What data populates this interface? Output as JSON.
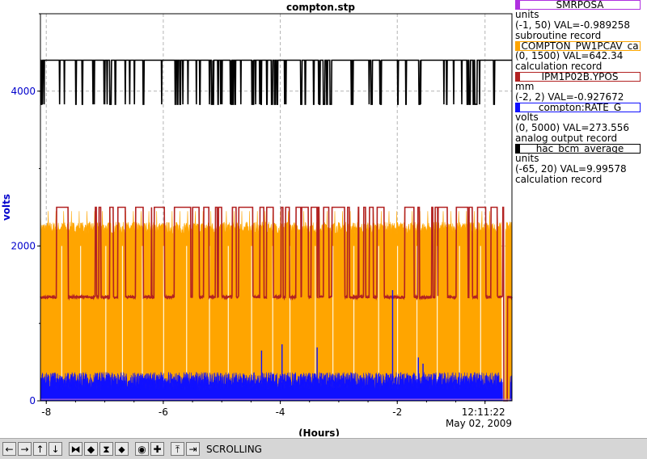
{
  "chart_data": {
    "type": "line",
    "title": "compton.stp",
    "xlabel": "(Hours)",
    "ylabel": "volts",
    "xlim": [
      -8.1,
      -0.04
    ],
    "ylim": [
      0,
      5000
    ],
    "x_ticks": [
      "-8",
      "-6",
      "-4",
      "-2"
    ],
    "y_ticks": [
      "0",
      "2000",
      "4000"
    ],
    "y_tick_values": [
      0,
      2000,
      4000
    ],
    "x_tick_values": [
      -8,
      -6,
      -4,
      -2
    ],
    "time_label": "12:11:22",
    "date_label": "May 02, 2009",
    "time_tick_value": -0.5,
    "grid": true,
    "legend_position": "right",
    "series": [
      {
        "name": "SMRPOSA",
        "color": "#b030e0",
        "range_min": -1,
        "range_max": 50,
        "base_fraction": 0.02,
        "style": "flat"
      },
      {
        "name": "COMPTON_PW1PCAV_ca",
        "color": "#ffa500",
        "range_min": 0,
        "range_max": 1500,
        "fill_top_y": 2200,
        "spike_y": 2450,
        "dropout_start": -0.22,
        "dropout_end": -0.15,
        "style": "band"
      },
      {
        "name": "IPM1P02B.YPOS",
        "color": "#b22222",
        "range_min": -2,
        "range_max": 2,
        "base_y": 1340,
        "high_y": 2500,
        "dropout_start": -0.2,
        "dropout_end": -0.12,
        "style": "square"
      },
      {
        "name": "compton:RATE_G",
        "color": "#1010ff",
        "range_min": 0,
        "range_max": 5000,
        "level_y": 250,
        "noise_y": 150,
        "spike_x": [
          -4.32,
          -3.97,
          -3.37,
          -2.08,
          -1.64,
          -1.56
        ],
        "spike_y": [
          650,
          730,
          690,
          1430,
          560,
          480
        ],
        "dropout_start": -0.2,
        "dropout_end": -0.07,
        "style": "noise"
      },
      {
        "name": "hac_bcm_average",
        "color": "#000000",
        "range_min": -65,
        "range_max": 20,
        "high_y": 4400,
        "low_y": 3830,
        "style": "square"
      }
    ]
  },
  "legend": [
    {
      "name": "SMRPOSA",
      "color": "#b030e0",
      "lines": [
        "units",
        "(-1, 50) VAL=-0.989258",
        "subroutine record"
      ]
    },
    {
      "name": "COMPTON_PW1PCAV_ca",
      "color": "#ffa500",
      "lines": [
        "(0, 1500) VAL=642.34",
        "calculation record"
      ]
    },
    {
      "name": "IPM1P02B.YPOS",
      "color": "#b22222",
      "lines": [
        "mm",
        "(-2, 2) VAL=-0.927672"
      ]
    },
    {
      "name": "compton:RATE_G",
      "color": "#1010ff",
      "lines": [
        "volts",
        "(0, 5000) VAL=273.556",
        "analog output record"
      ]
    },
    {
      "name": "hac_bcm_average",
      "color": "#000000",
      "lines": [
        "units",
        "(-65, 20) VAL=9.99578",
        "calculation record"
      ]
    }
  ],
  "toolbar": {
    "buttons": [
      {
        "name": "pan-left-button",
        "icon": "←"
      },
      {
        "name": "pan-right-button",
        "icon": "→"
      },
      {
        "name": "pan-up-button",
        "icon": "↑"
      },
      {
        "name": "pan-down-button",
        "icon": "↓"
      },
      {
        "name": "zoom-in-x-button",
        "icon": "⧓"
      },
      {
        "name": "zoom-out-x-button",
        "icon": "◆"
      },
      {
        "name": "zoom-in-y-button",
        "icon": "⧗"
      },
      {
        "name": "zoom-out-y-button",
        "icon": "⬥"
      },
      {
        "name": "autoscale-button",
        "icon": "◉"
      },
      {
        "name": "add-trace-button",
        "icon": "✚"
      },
      {
        "name": "scroll-button",
        "icon": "⤒"
      },
      {
        "name": "jump-end-button",
        "icon": "⇥"
      }
    ],
    "status": "SCROLLING"
  }
}
